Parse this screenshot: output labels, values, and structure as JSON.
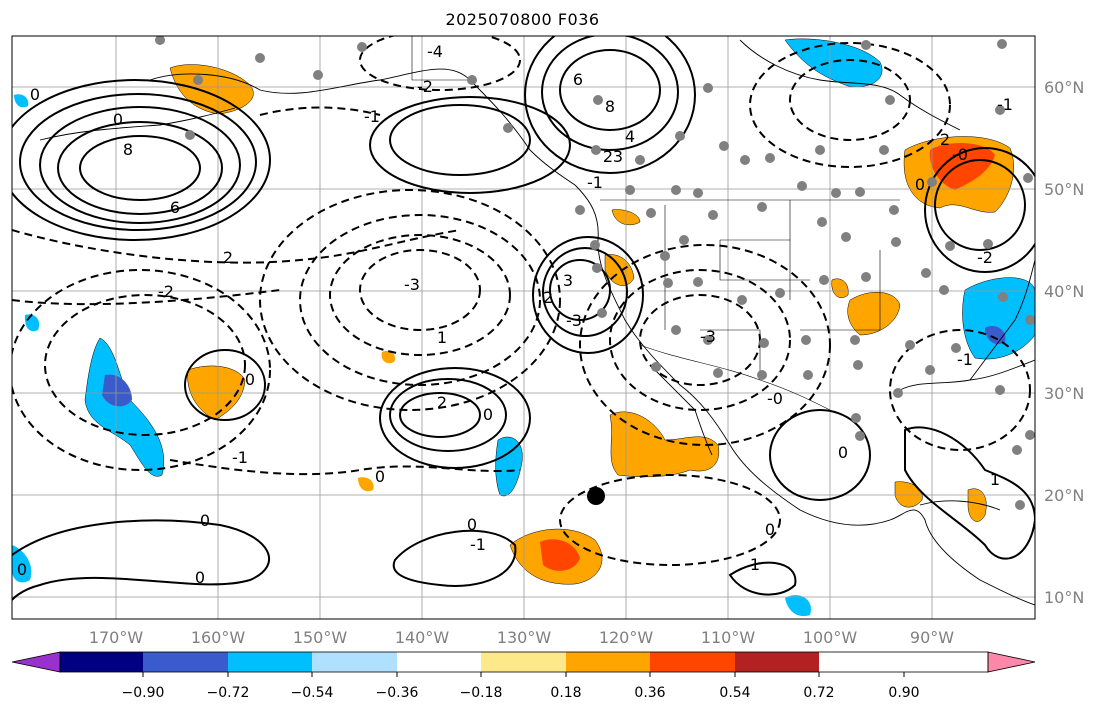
{
  "title": "2025070800 F036",
  "map": {
    "lon_labels": [
      "170°W",
      "160°W",
      "150°W",
      "140°W",
      "130°W",
      "120°W",
      "110°W",
      "100°W",
      "90°W"
    ],
    "lat_labels": [
      "60°N",
      "50°N",
      "40°N",
      "30°N",
      "20°N",
      "10°N"
    ],
    "contour_labels": [
      "-4",
      "-2",
      "-1",
      "0",
      "6",
      "8",
      "4",
      "3",
      "2",
      "-1",
      "0",
      "8",
      "6",
      "2",
      "-2",
      "-3",
      "3",
      "-3",
      "2",
      "-3",
      "1",
      "0",
      "2",
      "0",
      "0",
      "-1",
      "0",
      "0",
      "-1",
      "0",
      "0",
      "1",
      "0",
      "-0",
      "0",
      "-2",
      "-1",
      "-0",
      "0",
      "1",
      "2",
      "-1"
    ],
    "colors": {
      "positive_shading": [
        "#fee98a",
        "#ffa500",
        "#ff4500",
        "#b22222",
        "#ff88aa"
      ],
      "negative_shading": [
        "#b0e0ff",
        "#00bfff",
        "#3060cc",
        "#000080",
        "#9932cc"
      ],
      "land_points": "#808080",
      "marker": "#000000"
    }
  },
  "colorbar": {
    "ticks": [
      "−0.90",
      "−0.72",
      "−0.54",
      "−0.36",
      "−0.18",
      "0.18",
      "0.36",
      "0.54",
      "0.72",
      "0.90"
    ],
    "colors": [
      "#9932cc",
      "#000080",
      "#3a5bcc",
      "#00bfff",
      "#b0e0ff",
      "#ffffff",
      "#fee98a",
      "#ffa500",
      "#ff4500",
      "#b22222",
      "#ff88aa"
    ]
  }
}
